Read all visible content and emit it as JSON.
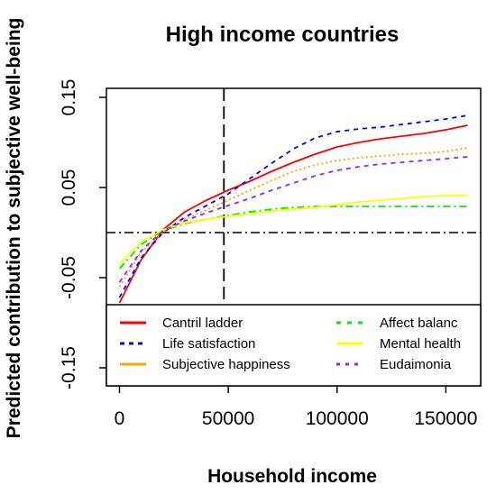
{
  "chart_data": {
    "type": "line",
    "title": "High income countries",
    "xlabel": "Household income",
    "ylabel": "Predicted contribution to subjective well-being",
    "xlim": [
      -6000,
      166000
    ],
    "ylim": [
      -0.17,
      0.16
    ],
    "x_ticks": [
      0,
      50000,
      100000,
      150000
    ],
    "x_tick_labels": [
      "0",
      "50000",
      "100000",
      "150000"
    ],
    "y_ticks": [
      -0.15,
      -0.05,
      0.05,
      0.15
    ],
    "y_tick_labels": [
      "-0.15",
      "-0.05",
      "0.05",
      "0.15"
    ],
    "reference_lines": {
      "vertical_x": 48000,
      "horizontal_y": 0
    },
    "grid": false,
    "legend_position": "bottom",
    "x": [
      0,
      10000,
      20000,
      30000,
      40000,
      50000,
      60000,
      70000,
      80000,
      90000,
      100000,
      110000,
      120000,
      130000,
      140000,
      150000,
      160000
    ],
    "series": [
      {
        "name": "Cantril ladder",
        "color": "#ff0000",
        "dash": "solid",
        "values": [
          -0.078,
          -0.03,
          0.003,
          0.023,
          0.036,
          0.047,
          0.057,
          0.068,
          0.078,
          0.087,
          0.095,
          0.1,
          0.104,
          0.107,
          0.11,
          0.114,
          0.119
        ]
      },
      {
        "name": "Life satisfaction",
        "color": "#0000ff",
        "dash": "dashed",
        "values": [
          -0.072,
          -0.028,
          0.0,
          0.017,
          0.03,
          0.043,
          0.06,
          0.077,
          0.093,
          0.105,
          0.112,
          0.115,
          0.117,
          0.12,
          0.123,
          0.126,
          0.13
        ]
      },
      {
        "name": "Subjective happiness",
        "color": "#ffa500",
        "dash": "dotted",
        "values": [
          -0.06,
          -0.022,
          0.001,
          0.015,
          0.025,
          0.036,
          0.047,
          0.058,
          0.068,
          0.075,
          0.08,
          0.083,
          0.085,
          0.087,
          0.088,
          0.09,
          0.094
        ]
      },
      {
        "name": "Affect balance",
        "color": "#00ee00",
        "dash": "dashdot",
        "values": [
          -0.04,
          -0.013,
          0.002,
          0.01,
          0.015,
          0.019,
          0.023,
          0.026,
          0.028,
          0.029,
          0.029,
          0.029,
          0.029,
          0.029,
          0.029,
          0.029,
          0.029
        ]
      },
      {
        "name": "Mental health",
        "color": "#ffff00",
        "dash": "solid",
        "values": [
          -0.035,
          -0.01,
          0.003,
          0.011,
          0.015,
          0.018,
          0.021,
          0.024,
          0.026,
          0.028,
          0.031,
          0.034,
          0.036,
          0.038,
          0.04,
          0.041,
          0.041
        ]
      },
      {
        "name": "Eudaimonia",
        "color": "#a020f0",
        "dash": "dashed",
        "values": [
          -0.055,
          -0.02,
          0.002,
          0.013,
          0.022,
          0.03,
          0.038,
          0.047,
          0.055,
          0.063,
          0.069,
          0.073,
          0.076,
          0.078,
          0.08,
          0.082,
          0.084
        ]
      }
    ],
    "legend_labels": [
      "Cantril ladder",
      "Life satisfaction",
      "Subjective happiness",
      "Affect balanc",
      "Mental health",
      "Eudaimonia"
    ]
  }
}
